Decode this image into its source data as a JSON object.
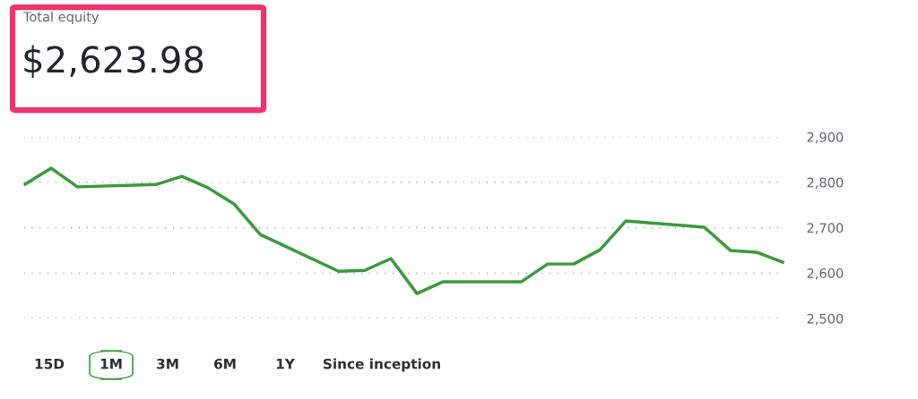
{
  "chart_data": {
    "type": "line",
    "title": "Total equity",
    "subtitle": "$2,623.98",
    "categories": [
      null,
      null,
      null,
      null,
      null,
      null,
      null,
      null,
      null,
      null,
      null,
      null,
      null,
      null,
      null,
      null,
      null,
      null,
      null,
      null,
      null,
      null,
      null,
      null,
      null,
      null,
      null,
      null,
      null,
      null
    ],
    "series": [
      {
        "color": "#3a9a3f",
        "values": [
          2796,
          2831,
          2790,
          null,
          null,
          2795,
          2813,
          2788,
          2752,
          2685,
          null,
          null,
          2604,
          2606,
          2632,
          2555,
          2581,
          null,
          null,
          2581,
          2620,
          2620,
          2651,
          2715,
          null,
          null,
          2701,
          2650,
          2646,
          2624
        ]
      }
    ],
    "ylim": [
      2500,
      2900
    ],
    "yticks": [
      {
        "value": 2500,
        "label": "2,500"
      },
      {
        "value": 2600,
        "label": "2,600"
      },
      {
        "value": 2700,
        "label": "2,700"
      },
      {
        "value": 2800,
        "label": "2,800"
      },
      {
        "value": 2900,
        "label": "2,900"
      }
    ],
    "grid": "y",
    "tick_labels": "y",
    "marker": "none",
    "line_style": "solid",
    "annotations": [
      "15D",
      "1M",
      "3M",
      "6M",
      "1Y",
      "Since inception"
    ]
  }
}
